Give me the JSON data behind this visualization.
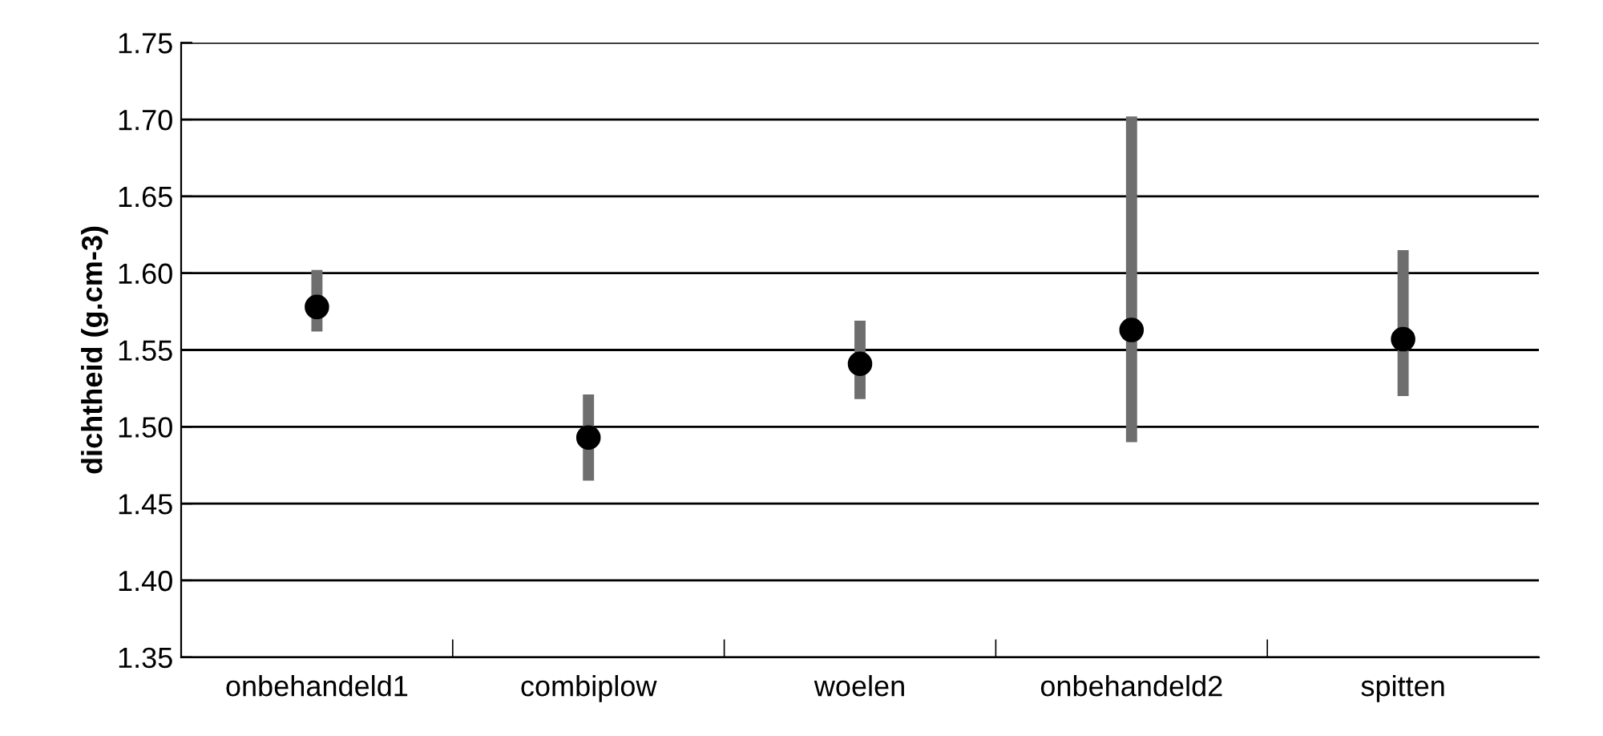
{
  "chart_data": {
    "type": "scatter",
    "ylabel": "dichtheid (g.cm-3)",
    "categories": [
      "onbehandeld1",
      "combiplow",
      "woelen",
      "onbehandeld2",
      "spitten"
    ],
    "values": [
      1.578,
      1.493,
      1.541,
      1.563,
      1.557
    ],
    "errors": [
      [
        1.562,
        1.602
      ],
      [
        1.465,
        1.521
      ],
      [
        1.518,
        1.569
      ],
      [
        1.49,
        1.702
      ],
      [
        1.52,
        1.615
      ]
    ],
    "color": "#000000",
    "marker": "circle",
    "ylim": [
      1.35,
      1.75
    ],
    "yticks": [
      {
        "value": 1.35,
        "label": "1.35"
      },
      {
        "value": 1.4,
        "label": "1.40"
      },
      {
        "value": 1.45,
        "label": "1.45"
      },
      {
        "value": 1.5,
        "label": "1.50"
      },
      {
        "value": 1.55,
        "label": "1.55"
      },
      {
        "value": 1.6,
        "label": "1.60"
      },
      {
        "value": 1.65,
        "label": "1.65"
      },
      {
        "value": 1.7,
        "label": "1.70"
      },
      {
        "value": 1.75,
        "label": "1.75"
      }
    ],
    "grid": "y"
  }
}
